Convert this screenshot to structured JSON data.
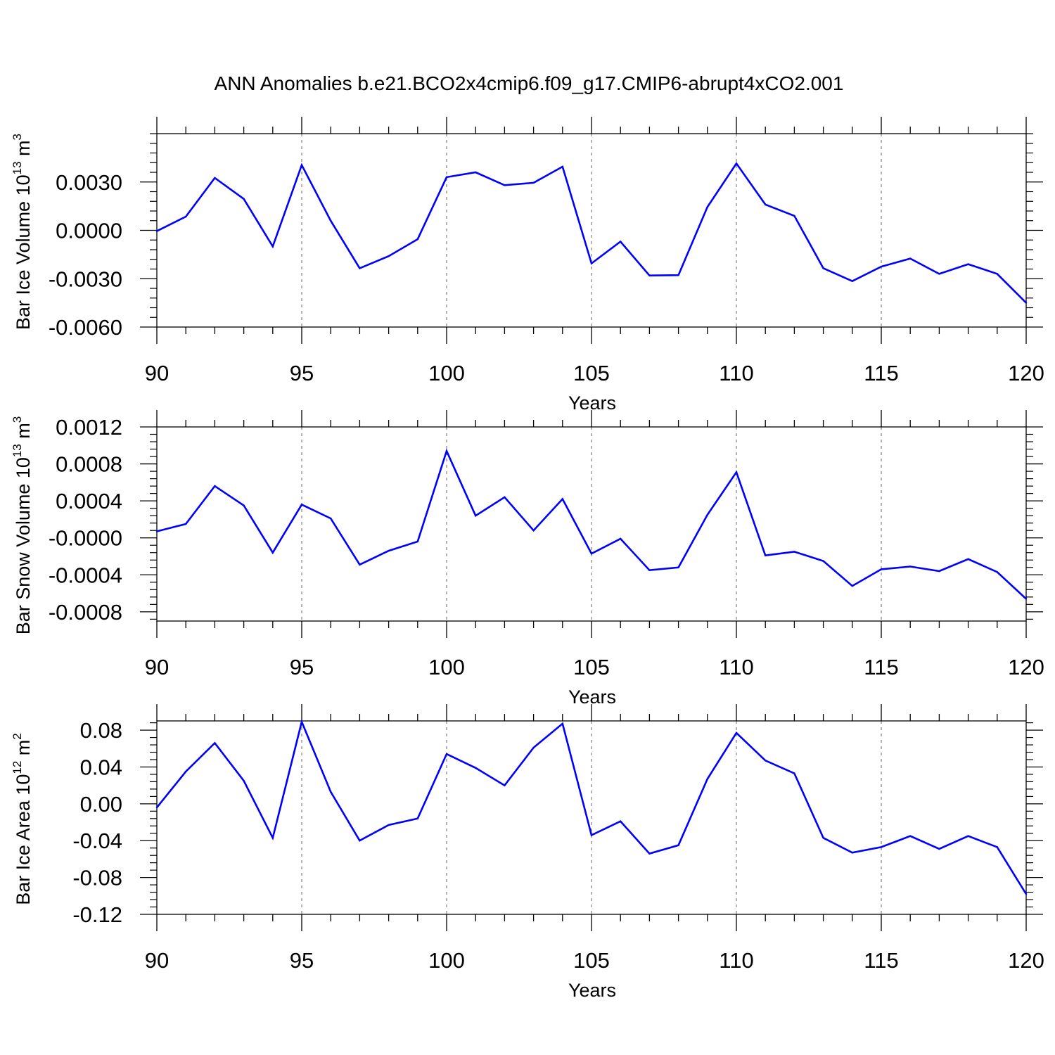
{
  "title": "ANN Anomalies b.e21.BCO2x4cmip6.f09_g17.CMIP6-abrupt4xCO2.001",
  "colors": {
    "line": "#0000ff",
    "axis": "#000000",
    "grid": "#808080"
  },
  "chart_data": [
    {
      "type": "line",
      "ylabel": {
        "text": "Bar Ice Volume 10",
        "exp": "13",
        "unit": " m",
        "unit_exp": "3"
      },
      "xlabel": "Years",
      "xlim": [
        90,
        120
      ],
      "ylim": [
        -0.006,
        0.006
      ],
      "yticks": [
        -0.006,
        -0.003,
        0.0,
        0.003
      ],
      "ytick_labels": [
        "-0.0060",
        "-0.0030",
        "0.0000",
        "0.0030"
      ],
      "xticks": [
        90,
        95,
        100,
        105,
        110,
        115,
        120
      ],
      "xtick_labels": [
        "90",
        "95",
        "100",
        "105",
        "110",
        "115",
        "120"
      ],
      "grid": "vertical dashed at major x ticks",
      "x": [
        90,
        91,
        92,
        93,
        94,
        95,
        96,
        97,
        98,
        99,
        100,
        101,
        102,
        103,
        104,
        105,
        106,
        107,
        108,
        109,
        110,
        111,
        112,
        113,
        114,
        115,
        116,
        117,
        118,
        119,
        120
      ],
      "y": [
        -5e-05,
        0.00085,
        0.00325,
        0.00195,
        -0.001,
        0.00405,
        0.0006,
        -0.00235,
        -0.0016,
        -0.00055,
        0.0033,
        0.0036,
        0.0028,
        0.00295,
        0.00395,
        -0.00205,
        -0.0007,
        -0.0028,
        -0.00278,
        0.00145,
        0.00415,
        0.0016,
        0.0009,
        -0.00235,
        -0.00315,
        -0.00225,
        -0.00175,
        -0.0027,
        -0.0021,
        -0.0027,
        -0.0045
      ]
    },
    {
      "type": "line",
      "ylabel": {
        "text": "Bar Snow Volume 10",
        "exp": "13",
        "unit": " m",
        "unit_exp": "3"
      },
      "xlabel": "Years",
      "xlim": [
        90,
        120
      ],
      "ylim": [
        -0.0009,
        0.0012
      ],
      "yticks": [
        -0.0008,
        -0.0004,
        0.0,
        0.0004,
        0.0008,
        0.0012
      ],
      "ytick_labels": [
        "-0.0008",
        "-0.0004",
        "-0.0000",
        "0.0004",
        "0.0008",
        "0.0012"
      ],
      "xticks": [
        90,
        95,
        100,
        105,
        110,
        115,
        120
      ],
      "xtick_labels": [
        "90",
        "95",
        "100",
        "105",
        "110",
        "115",
        "120"
      ],
      "grid": "vertical dashed at major x ticks",
      "x": [
        90,
        91,
        92,
        93,
        94,
        95,
        96,
        97,
        98,
        99,
        100,
        101,
        102,
        103,
        104,
        105,
        106,
        107,
        108,
        109,
        110,
        111,
        112,
        113,
        114,
        115,
        116,
        117,
        118,
        119,
        120
      ],
      "y": [
        7e-05,
        0.00015,
        0.00056,
        0.00035,
        -0.00016,
        0.00036,
        0.00021,
        -0.00029,
        -0.00014,
        -4e-05,
        0.00094,
        0.00024,
        0.00044,
        8e-05,
        0.00042,
        -0.00017,
        -1e-05,
        -0.00035,
        -0.00032,
        0.00025,
        0.00071,
        -0.00019,
        -0.00015,
        -0.00025,
        -0.00052,
        -0.00034,
        -0.00031,
        -0.00036,
        -0.00023,
        -0.00037,
        -0.00066
      ]
    },
    {
      "type": "line",
      "ylabel": {
        "text": "Bar Ice Area 10",
        "exp": "12",
        "unit": " m",
        "unit_exp": "2"
      },
      "xlabel": "Years",
      "xlim": [
        90,
        120
      ],
      "ylim": [
        -0.12,
        0.09
      ],
      "yticks": [
        -0.12,
        -0.08,
        -0.04,
        0.0,
        0.04,
        0.08
      ],
      "ytick_labels": [
        "-0.12",
        "-0.08",
        "-0.04",
        "0.00",
        "0.04",
        "0.08"
      ],
      "xticks": [
        90,
        95,
        100,
        105,
        110,
        115,
        120
      ],
      "xtick_labels": [
        "90",
        "95",
        "100",
        "105",
        "110",
        "115",
        "120"
      ],
      "grid": "vertical dashed at major x ticks",
      "x": [
        90,
        91,
        92,
        93,
        94,
        95,
        96,
        97,
        98,
        99,
        100,
        101,
        102,
        103,
        104,
        105,
        106,
        107,
        108,
        109,
        110,
        111,
        112,
        113,
        114,
        115,
        116,
        117,
        118,
        119,
        120
      ],
      "y": [
        -0.004,
        0.035,
        0.066,
        0.025,
        -0.037,
        0.089,
        0.013,
        -0.04,
        -0.023,
        -0.016,
        0.054,
        0.039,
        0.02,
        0.061,
        0.087,
        -0.034,
        -0.019,
        -0.054,
        -0.045,
        0.027,
        0.077,
        0.047,
        0.033,
        -0.037,
        -0.053,
        -0.047,
        -0.035,
        -0.049,
        -0.035,
        -0.047,
        -0.098
      ]
    }
  ]
}
